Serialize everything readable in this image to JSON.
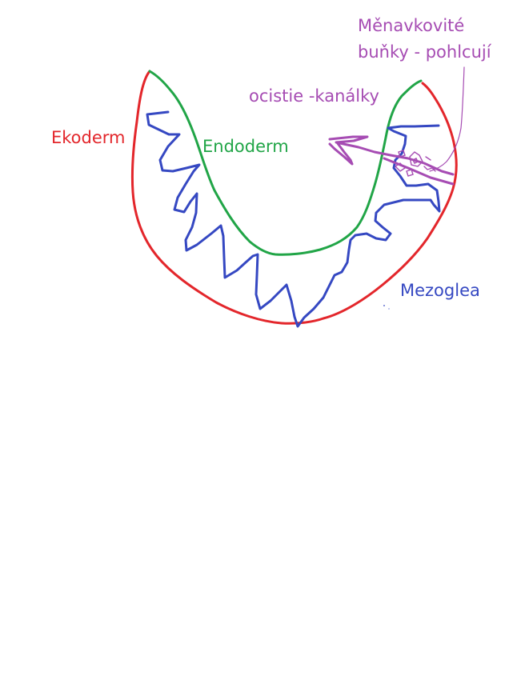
{
  "labels": {
    "ekoderm": "Ekoderm",
    "endoderm": "Endoderm",
    "ocistie": "ocistie -kanálky",
    "menavkovite_line1": "Měnavkovité",
    "menavkovite_line2": "buňky - pohlcují",
    "mezoglea": "Mezoglea"
  },
  "colors": {
    "ekoderm": "#e3262b",
    "endoderm": "#21a547",
    "mezoglea": "#3548c2",
    "ocistie": "#a64cb3",
    "menavkovite": "#a64cb3"
  }
}
